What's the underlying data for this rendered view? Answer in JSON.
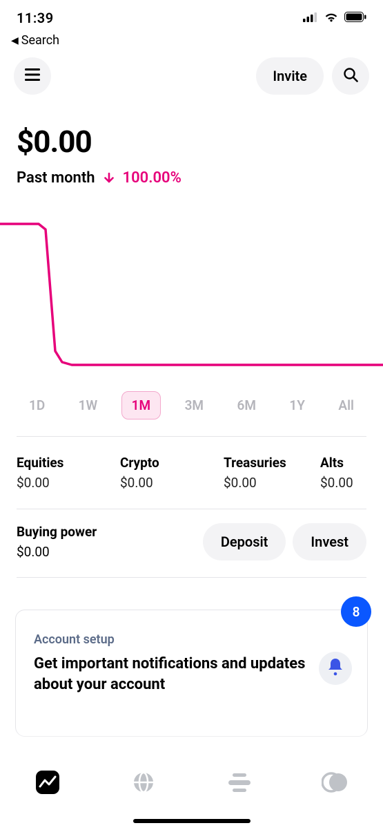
{
  "status": {
    "time": "11:39"
  },
  "nav": {
    "back_label": "Search"
  },
  "header": {
    "invite_label": "Invite"
  },
  "balance": {
    "amount": "$0.00",
    "period_label": "Past month",
    "change_pct": "100.00%",
    "change_color": "#e6007a"
  },
  "chart": {
    "type": "line",
    "line_color": "#e6007a",
    "line_width": 3.5,
    "background_color": "#ffffff",
    "xlim": [
      0,
      555
    ],
    "ylim": [
      0,
      230
    ],
    "points": [
      [
        0,
        6
      ],
      [
        56,
        6
      ],
      [
        66,
        14
      ],
      [
        80,
        190
      ],
      [
        90,
        206
      ],
      [
        104,
        210
      ],
      [
        555,
        210
      ]
    ]
  },
  "ranges": {
    "items": [
      {
        "label": "1D"
      },
      {
        "label": "1W"
      },
      {
        "label": "1M"
      },
      {
        "label": "3M"
      },
      {
        "label": "6M"
      },
      {
        "label": "1Y"
      },
      {
        "label": "All"
      }
    ],
    "active_index": 2,
    "inactive_color": "#b5b5bb",
    "active_color": "#e6007a",
    "active_bg": "#fde6f1",
    "active_border": "#f3a8cc"
  },
  "assets": {
    "items": [
      {
        "label": "Equities",
        "value": "$0.00"
      },
      {
        "label": "Crypto",
        "value": "$0.00"
      },
      {
        "label": "Treasuries",
        "value": "$0.00"
      },
      {
        "label": "Alts",
        "value": "$0.00"
      }
    ]
  },
  "buying_power": {
    "label": "Buying power",
    "value": "$0.00",
    "deposit_label": "Deposit",
    "invest_label": "Invest"
  },
  "card": {
    "kicker": "Account setup",
    "title": "Get important notifications and updates about your account",
    "badge_count": "8"
  },
  "colors": {
    "bg": "#ffffff",
    "divider": "#e4e4e8",
    "pill_bg": "#f3f3f5",
    "accent_pink": "#e6007a",
    "badge_blue": "#0a57ff",
    "muted_text": "#5b6b88",
    "tab_inactive": "#bfc2c7"
  }
}
